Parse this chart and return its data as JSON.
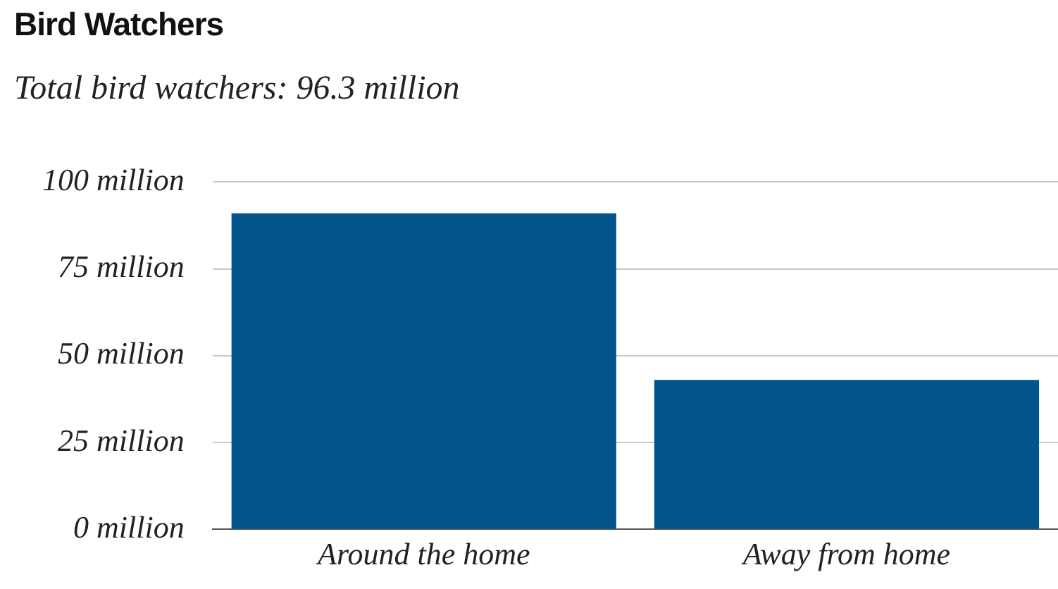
{
  "chart_data": {
    "type": "bar",
    "title": "Bird Watchers",
    "subtitle": "Total bird watchers: 96.3 million",
    "categories": [
      "Around the home",
      "Away from home"
    ],
    "values": [
      91,
      43
    ],
    "color": "#02548a",
    "ylim": [
      0,
      100
    ],
    "yticks": [
      {
        "value": 0,
        "label": "0 million"
      },
      {
        "value": 25,
        "label": "25 million"
      },
      {
        "value": 50,
        "label": "50 million"
      },
      {
        "value": 75,
        "label": "75 million"
      },
      {
        "value": 100,
        "label": "100 million"
      }
    ],
    "grid": "y",
    "legend": false
  }
}
